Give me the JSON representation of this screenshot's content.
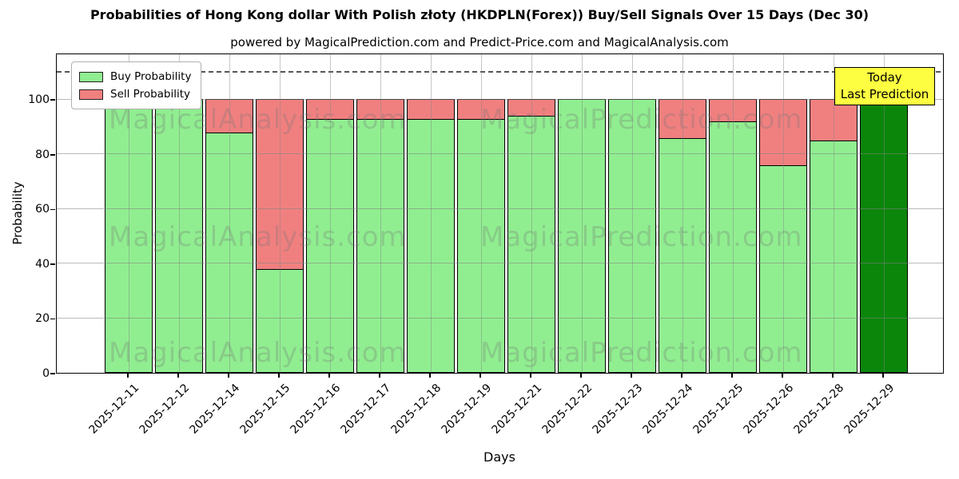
{
  "title": "Probabilities of Hong Kong dollar With Polish złoty (HKDPLN(Forex)) Buy/Sell Signals Over 15 Days (Dec 30)",
  "subtitle": "powered by MagicalPrediction.com and Predict-Price.com and MagicalAnalysis.com",
  "annotation": {
    "line1": "Today",
    "line2": "Last Prediction"
  },
  "watermarks": {
    "left_text": "MagicalAnalysis.com",
    "right_text": "MagicalPrediction.com",
    "rows": 3
  },
  "colors": {
    "buy": "#90EE90",
    "sell": "#F08080",
    "today_bar": "#0B860B",
    "annotation_bg": "#FDFD41",
    "grid": "#828282"
  },
  "chart_data": {
    "type": "bar",
    "stacked": true,
    "title": "Probabilities of Hong Kong dollar With Polish złoty (HKDPLN(Forex)) Buy/Sell Signals Over 15 Days (Dec 30)",
    "xlabel": "Days",
    "ylabel": "Probability",
    "ylim": [
      0,
      117
    ],
    "yticks": [
      0,
      20,
      40,
      60,
      80,
      100
    ],
    "dashed_line_y": 110,
    "grid": true,
    "legend_position": "upper left",
    "categories": [
      "2025-12-11",
      "2025-12-12",
      "2025-12-14",
      "2025-12-15",
      "2025-12-16",
      "2025-12-17",
      "2025-12-18",
      "2025-12-19",
      "2025-12-21",
      "2025-12-22",
      "2025-12-23",
      "2025-12-24",
      "2025-12-25",
      "2025-12-26",
      "2025-12-28",
      "2025-12-29"
    ],
    "series": [
      {
        "name": "Buy Probability",
        "color": "#90EE90",
        "values": [
          100,
          100,
          88,
          38,
          93,
          93,
          93,
          93,
          94,
          100,
          100,
          86,
          92,
          76,
          85,
          100
        ]
      },
      {
        "name": "Sell Probability",
        "color": "#F08080",
        "values": [
          0,
          0,
          12,
          62,
          7,
          7,
          7,
          7,
          6,
          0,
          0,
          14,
          8,
          24,
          15,
          0
        ]
      }
    ],
    "today_bar": {
      "index": 15,
      "color": "#0B860B",
      "label": "Today Last Prediction"
    }
  }
}
